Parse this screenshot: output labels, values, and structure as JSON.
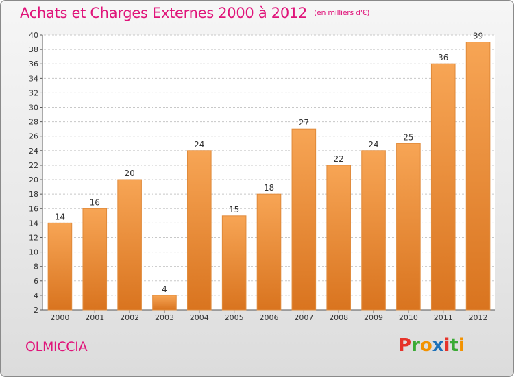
{
  "header": {
    "title": "Achats et Charges Externes 2000 à 2012",
    "unit": "(en milliers d'€)"
  },
  "footer": {
    "commune": "OLMICCIA",
    "logo_text": "Proxiti",
    "logo_colors": [
      "#e6332a",
      "#3aaa35",
      "#f39200",
      "#1d71b8",
      "#e6332a",
      "#3aaa35",
      "#f39200"
    ]
  },
  "colors": {
    "title": "#e0147a",
    "bar_light": "#f7a555",
    "bar_dark": "#d9741f",
    "bar_stroke": "#e08a3a"
  },
  "chart_data": {
    "type": "bar",
    "categories": [
      "2000",
      "2001",
      "2002",
      "2003",
      "2004",
      "2005",
      "2006",
      "2007",
      "2008",
      "2009",
      "2010",
      "2011",
      "2012"
    ],
    "values": [
      14,
      16,
      20,
      4,
      24,
      15,
      18,
      27,
      22,
      24,
      25,
      36,
      39
    ],
    "title": "Achats et Charges Externes 2000 à 2012",
    "xlabel": "",
    "ylabel": "",
    "ylim": [
      2,
      40
    ],
    "yticks": [
      2,
      4,
      6,
      8,
      10,
      12,
      14,
      16,
      18,
      20,
      22,
      24,
      26,
      28,
      30,
      32,
      34,
      36,
      38,
      40
    ],
    "grid": true,
    "data_labels": true
  }
}
